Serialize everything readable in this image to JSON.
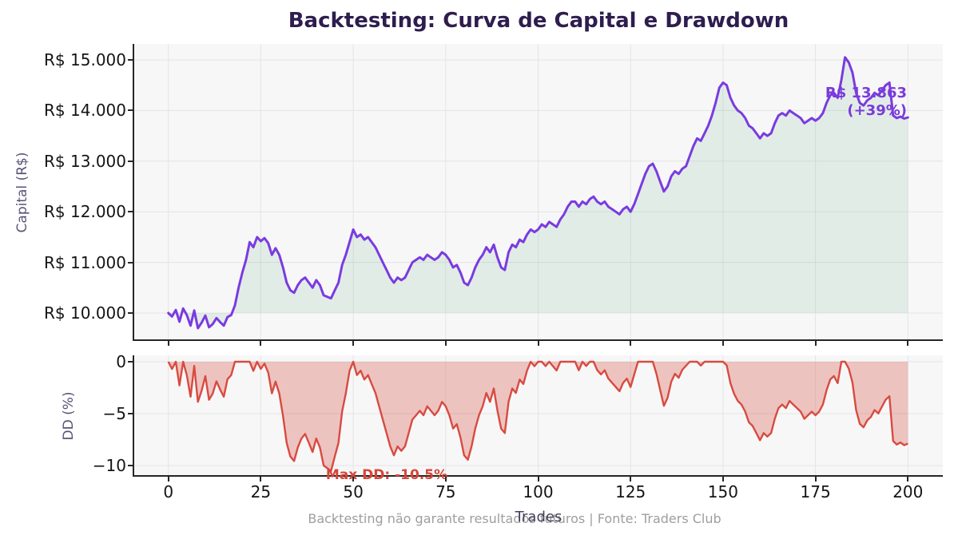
{
  "title": "Backtesting: Curva de Capital e Drawdown",
  "footer": "Backtesting não garante resultados futuros | Fonte: Traders Club",
  "colors": {
    "title": "#2e1d4e",
    "capital_line": "#7a3be0",
    "capital_fill": "rgba(82,165,113,0.13)",
    "dd_line": "#d84b40",
    "dd_fill": "rgba(216,75,64,0.30)",
    "plot_background": "#f7f7f8",
    "grid": "#e4e4e6",
    "spine": "#262626",
    "axis_label": "#5a5278",
    "tick_label": "#141414",
    "annotation_capital": "#7a3bdb",
    "annotation_maxdd": "#d8453a",
    "footer_text": "#9e9e9e"
  },
  "capital_axis": {
    "label": "Capital (R$)",
    "ticks": [
      {
        "label": "R$ 15.000",
        "value": 15000
      },
      {
        "label": "R$ 14.000",
        "value": 14000
      },
      {
        "label": "R$ 13.000",
        "value": 13000
      },
      {
        "label": "R$ 12.000",
        "value": 12000
      },
      {
        "label": "R$ 11.000",
        "value": 11000
      },
      {
        "label": "R$ 10.000",
        "value": 10000
      }
    ]
  },
  "dd_axis": {
    "label": "DD (%)",
    "ticks": [
      {
        "label": "0",
        "value": 0
      },
      {
        "label": "−5",
        "value": -5
      },
      {
        "label": "−10",
        "value": -10
      }
    ]
  },
  "x_axis": {
    "label": "Trades",
    "ticks": [
      0,
      25,
      50,
      75,
      100,
      125,
      150,
      175,
      200
    ]
  },
  "annotations": {
    "final_capital": "R$ 13.863",
    "final_return": "(+39%)",
    "max_drawdown": "Max DD: -10.5%"
  },
  "chart_data": [
    {
      "type": "line",
      "name": "capital-curve",
      "title": "Backtesting: Curva de Capital e Drawdown",
      "xlabel": "Trades",
      "ylabel": "Capital (R$)",
      "x_start": 0,
      "x_step": 1,
      "xlim": [
        -9,
        209
      ],
      "ylim": [
        9440,
        15320
      ],
      "grid": true,
      "start_value": 10000,
      "final_value": 13863,
      "total_return_pct": 39,
      "peak_value": 15050,
      "values": [
        10000,
        9930,
        10060,
        9830,
        10090,
        9960,
        9750,
        10050,
        9700,
        9810,
        9950,
        9720,
        9780,
        9900,
        9820,
        9750,
        9920,
        9960,
        10150,
        10500,
        10800,
        11050,
        11400,
        11300,
        11500,
        11420,
        11480,
        11380,
        11150,
        11280,
        11150,
        10900,
        10600,
        10450,
        10400,
        10550,
        10650,
        10700,
        10600,
        10500,
        10650,
        10550,
        10350,
        10320,
        10290,
        10450,
        10600,
        10950,
        11150,
        11400,
        11650,
        11500,
        11550,
        11450,
        11500,
        11400,
        11300,
        11150,
        11000,
        10850,
        10700,
        10600,
        10700,
        10650,
        10700,
        10850,
        11000,
        11050,
        11100,
        11050,
        11150,
        11100,
        11050,
        11100,
        11200,
        11150,
        11050,
        10900,
        10950,
        10800,
        10600,
        10550,
        10700,
        10900,
        11050,
        11150,
        11300,
        11200,
        11350,
        11100,
        10900,
        10850,
        11200,
        11350,
        11300,
        11450,
        11400,
        11550,
        11650,
        11600,
        11650,
        11750,
        11700,
        11800,
        11750,
        11700,
        11850,
        11950,
        12100,
        12200,
        12200,
        12100,
        12200,
        12150,
        12250,
        12300,
        12200,
        12150,
        12200,
        12100,
        12050,
        12000,
        11950,
        12050,
        12100,
        12000,
        12150,
        12350,
        12550,
        12750,
        12900,
        12950,
        12800,
        12600,
        12400,
        12500,
        12700,
        12800,
        12750,
        12850,
        12900,
        13100,
        13300,
        13450,
        13400,
        13550,
        13700,
        13900,
        14150,
        14450,
        14550,
        14500,
        14250,
        14100,
        14000,
        13950,
        13850,
        13700,
        13650,
        13550,
        13450,
        13550,
        13500,
        13550,
        13750,
        13900,
        13950,
        13900,
        14000,
        13950,
        13900,
        13850,
        13750,
        13800,
        13850,
        13800,
        13850,
        13950,
        14150,
        14300,
        14350,
        14250,
        14600,
        15050,
        14950,
        14750,
        14350,
        14150,
        14100,
        14200,
        14250,
        14350,
        14300,
        14400,
        14500,
        14550,
        13900,
        13850,
        13880,
        13840,
        13863
      ]
    },
    {
      "type": "area",
      "name": "drawdown",
      "ylabel": "DD (%)",
      "xlabel": "Trades",
      "ylim": [
        -11.7,
        0.6
      ],
      "grid": true,
      "derived": "percent decline from running maximum of the capital series",
      "max_dd_pct": -10.5,
      "max_dd_trade": 44,
      "end_dd_pct": -7.9
    }
  ]
}
